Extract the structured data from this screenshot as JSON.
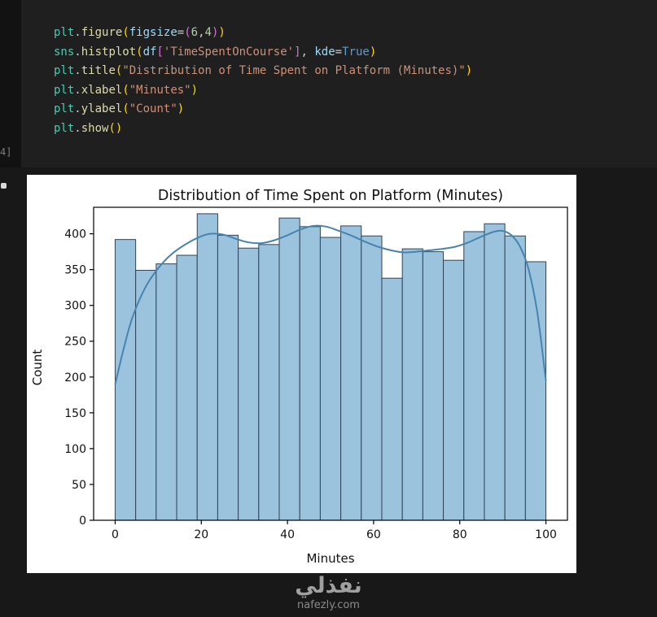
{
  "editor": {
    "execution_label": "4]",
    "syntax_colors": {
      "type": "#4ec9b0",
      "func": "#dcdcaa",
      "str": "#ce9178",
      "num": "#b5cea8",
      "kw": "#569cd6",
      "param": "#9cdcfe",
      "punct": "#cccccc",
      "br1": "#ffd70b",
      "br2": "#da70d6"
    },
    "code_lines": [
      [
        [
          "plt",
          "type"
        ],
        [
          ".",
          "punct"
        ],
        [
          "figure",
          "func"
        ],
        [
          "(",
          "br1"
        ],
        [
          "figsize",
          "param"
        ],
        [
          "=",
          "punct"
        ],
        [
          "(",
          "br2"
        ],
        [
          "6",
          "num"
        ],
        [
          ",",
          "punct"
        ],
        [
          "4",
          "num"
        ],
        [
          ")",
          "br2"
        ],
        [
          ")",
          "br1"
        ]
      ],
      [
        [
          "sns",
          "type"
        ],
        [
          ".",
          "punct"
        ],
        [
          "histplot",
          "func"
        ],
        [
          "(",
          "br1"
        ],
        [
          "df",
          "param"
        ],
        [
          "[",
          "br2"
        ],
        [
          "'TimeSpentOnCourse'",
          "str"
        ],
        [
          "]",
          "br2"
        ],
        [
          ", ",
          "punct"
        ],
        [
          "kde",
          "param"
        ],
        [
          "=",
          "punct"
        ],
        [
          "True",
          "kw"
        ],
        [
          ")",
          "br1"
        ]
      ],
      [
        [
          "plt",
          "type"
        ],
        [
          ".",
          "punct"
        ],
        [
          "title",
          "func"
        ],
        [
          "(",
          "br1"
        ],
        [
          "\"Distribution of Time Spent on Platform (Minutes)\"",
          "str"
        ],
        [
          ")",
          "br1"
        ]
      ],
      [
        [
          "plt",
          "type"
        ],
        [
          ".",
          "punct"
        ],
        [
          "xlabel",
          "func"
        ],
        [
          "(",
          "br1"
        ],
        [
          "\"Minutes\"",
          "str"
        ],
        [
          ")",
          "br1"
        ]
      ],
      [
        [
          "plt",
          "type"
        ],
        [
          ".",
          "punct"
        ],
        [
          "ylabel",
          "func"
        ],
        [
          "(",
          "br1"
        ],
        [
          "\"Count\"",
          "str"
        ],
        [
          ")",
          "br1"
        ]
      ],
      [
        [
          "plt",
          "type"
        ],
        [
          ".",
          "punct"
        ],
        [
          "show",
          "func"
        ],
        [
          "(",
          "br1"
        ],
        [
          ")",
          "br1"
        ]
      ]
    ]
  },
  "chart_data": {
    "type": "bar",
    "subtype": "histogram_with_kde",
    "title": "Distribution of Time Spent on Platform (Minutes)",
    "xlabel": "Minutes",
    "ylabel": "Count",
    "bin_start": 0,
    "bin_end": 100,
    "bar_values": [
      392,
      349,
      358,
      370,
      428,
      398,
      380,
      385,
      422,
      410,
      395,
      411,
      397,
      338,
      379,
      375,
      363,
      403,
      414,
      397,
      361
    ],
    "kde_points": [
      [
        0,
        190
      ],
      [
        2,
        240
      ],
      [
        4,
        283
      ],
      [
        7,
        325
      ],
      [
        10,
        352
      ],
      [
        13,
        371
      ],
      [
        16,
        384
      ],
      [
        19,
        394
      ],
      [
        22,
        400
      ],
      [
        25,
        399
      ],
      [
        28,
        393
      ],
      [
        31,
        388
      ],
      [
        34,
        387
      ],
      [
        37,
        391
      ],
      [
        40,
        398
      ],
      [
        43,
        406
      ],
      [
        46,
        411
      ],
      [
        49,
        410
      ],
      [
        52,
        404
      ],
      [
        55,
        397
      ],
      [
        58,
        389
      ],
      [
        61,
        382
      ],
      [
        64,
        377
      ],
      [
        67,
        374
      ],
      [
        70,
        375
      ],
      [
        73,
        377
      ],
      [
        76,
        379
      ],
      [
        79,
        382
      ],
      [
        82,
        388
      ],
      [
        85,
        396
      ],
      [
        88,
        403
      ],
      [
        90,
        404
      ],
      [
        92,
        398
      ],
      [
        94,
        382
      ],
      [
        96,
        350
      ],
      [
        98,
        290
      ],
      [
        100,
        195
      ]
    ],
    "xticks": [
      0,
      20,
      40,
      60,
      80,
      100
    ],
    "yticks": [
      0,
      50,
      100,
      150,
      200,
      250,
      300,
      350,
      400
    ],
    "xlim": [
      -5,
      105
    ],
    "ylim": [
      0,
      437
    ],
    "grid": false,
    "legend": "none",
    "bar_fill": "#9cc3de",
    "bar_edge": "#2f4458",
    "kde_color": "#4684af",
    "axes_color": "#000000"
  },
  "watermark": {
    "arabic": "نفذلي",
    "site": "nafezly.com"
  }
}
